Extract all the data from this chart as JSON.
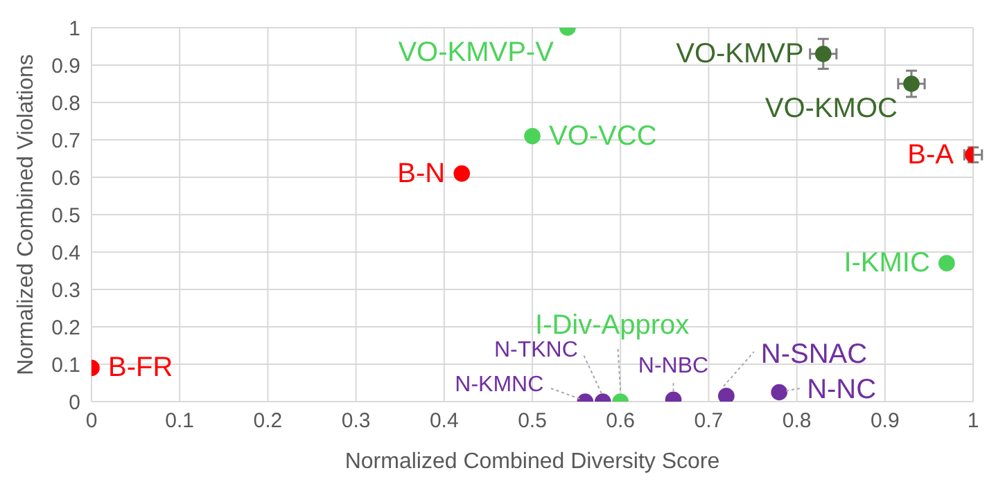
{
  "chart_data": {
    "type": "scatter",
    "xlabel": "Normalized Combined Diversity Score",
    "ylabel": "Normalized Combined Violations",
    "xlim": [
      0,
      1
    ],
    "ylim": [
      0,
      1
    ],
    "xticks": [
      0,
      0.1,
      0.2,
      0.3,
      0.4,
      0.5,
      0.6,
      0.7,
      0.8,
      0.9,
      1
    ],
    "yticks": [
      0,
      0.1,
      0.2,
      0.3,
      0.4,
      0.5,
      0.6,
      0.7,
      0.8,
      0.9,
      1
    ],
    "grid": true,
    "legend": false,
    "marker": "circle",
    "series": [
      {
        "color": "#ff0000",
        "x": [
          0,
          0.42,
          1.0
        ],
        "values": [
          0.09,
          0.61,
          0.66
        ],
        "errors": [
          null,
          null,
          0.02
        ],
        "xerrors": [
          null,
          null,
          0.01
        ],
        "value_labels": [
          "B-FR",
          "B-N",
          "B-A"
        ]
      },
      {
        "color": "#4cd35a",
        "x": [
          0.54,
          0.5,
          0.97,
          0.6
        ],
        "values": [
          1.0,
          0.71,
          0.37,
          0
        ],
        "value_labels": [
          "VO-KMVP-V",
          "VO-VCC",
          "I-KMIC",
          "I-Div-Approx"
        ]
      },
      {
        "color": "#3d6b2c",
        "x": [
          0.83,
          0.93
        ],
        "values": [
          0.93,
          0.85
        ],
        "errors": [
          0.04,
          0.035
        ],
        "xerrors": [
          0.015,
          0.015
        ],
        "value_labels": [
          "VO-KMVP",
          "VO-KMOC"
        ]
      },
      {
        "color": "#7030a0",
        "x": [
          0.56,
          0.58,
          0.66,
          0.72,
          0.78
        ],
        "values": [
          0,
          0,
          0.005,
          0.015,
          0.025
        ],
        "value_labels": [
          "N-KMNC",
          "N-TKNC",
          "N-NBC",
          "N-SNAC",
          "N-NC"
        ]
      }
    ]
  }
}
